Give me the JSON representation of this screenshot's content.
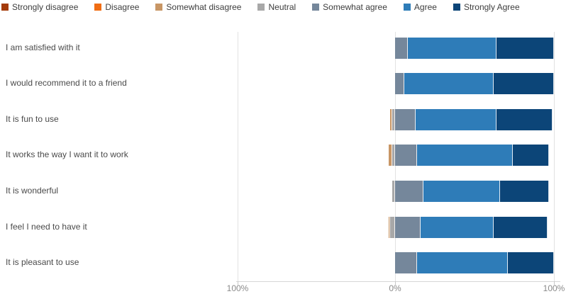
{
  "legend": {
    "items": [
      {
        "label": "Strongly disagree",
        "color": "#A43B0A"
      },
      {
        "label": "Disagree",
        "color": "#F06D13"
      },
      {
        "label": "Somewhat disagree",
        "color": "#C89665"
      },
      {
        "label": "Neutral",
        "color": "#A8A8A8"
      },
      {
        "label": "Somewhat agree",
        "color": "#75879B"
      },
      {
        "label": "Agree",
        "color": "#2E7CB8"
      },
      {
        "label": "Strongly Agree",
        "color": "#0C4578"
      }
    ]
  },
  "x_axis": {
    "ticks": [
      "100%",
      "0%",
      "100%"
    ]
  },
  "chart_data": {
    "type": "bar",
    "orientation": "horizontal",
    "diverging": true,
    "title": "",
    "xlabel": "",
    "ylabel": "",
    "units": "percent",
    "xlim": [
      -100,
      100
    ],
    "x_tick_labels": [
      "100%",
      "0%",
      "100%"
    ],
    "legend_position": "top",
    "grid": "vertical-at-ticks",
    "categories": [
      "I am satisfied with it",
      "I would recommend it to a friend",
      "It is fun to use",
      "It works the way I want it to work",
      "It is wonderful",
      "I feel I need to have it",
      "It is pleasant to use"
    ],
    "series": [
      {
        "name": "Strongly disagree",
        "color": "#A43B0A",
        "side": "negative",
        "values": [
          0,
          0,
          0,
          0,
          0,
          0,
          0
        ]
      },
      {
        "name": "Disagree",
        "color": "#F06D13",
        "side": "negative",
        "values": [
          0,
          0,
          0,
          0,
          0,
          0,
          0
        ]
      },
      {
        "name": "Somewhat disagree",
        "color": "#C89665",
        "side": "negative",
        "values": [
          0,
          0,
          1,
          2,
          0,
          1,
          0
        ]
      },
      {
        "name": "Neutral",
        "color": "#A8A8A8",
        "side": "negative",
        "values": [
          0,
          0,
          2,
          2,
          2,
          3,
          0
        ]
      },
      {
        "name": "Somewhat agree",
        "color": "#75879B",
        "side": "positive",
        "values": [
          8,
          6,
          13,
          14,
          18,
          16,
          14
        ]
      },
      {
        "name": "Agree",
        "color": "#2E7CB8",
        "side": "positive",
        "values": [
          56,
          56,
          51,
          60,
          48,
          46,
          57
        ]
      },
      {
        "name": "Strongly Agree",
        "color": "#0C4578",
        "side": "positive",
        "values": [
          36,
          38,
          35,
          23,
          31,
          34,
          29
        ]
      }
    ]
  }
}
